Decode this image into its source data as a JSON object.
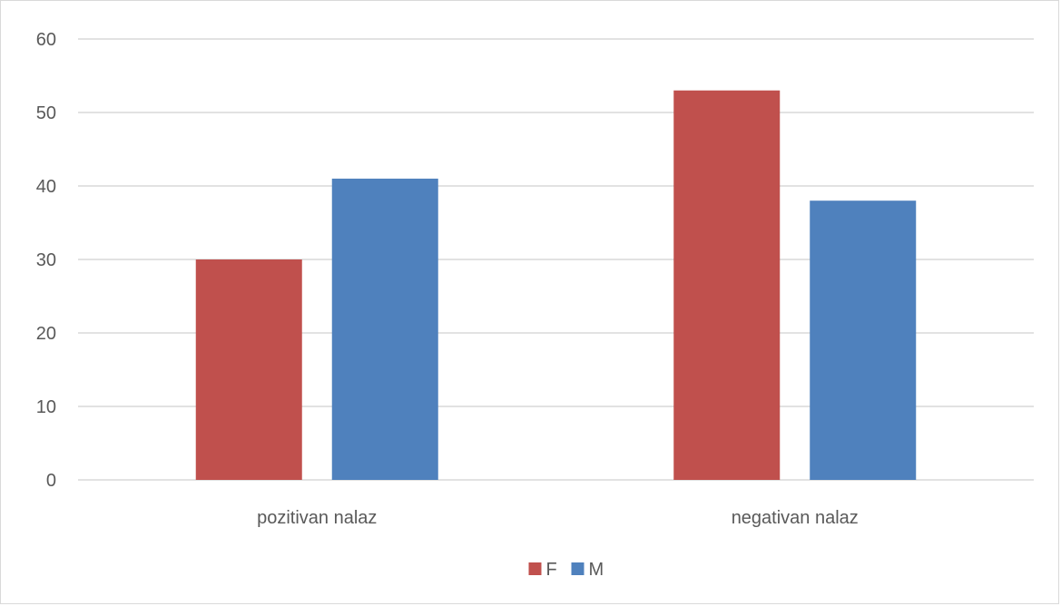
{
  "chart_data": {
    "type": "bar",
    "categories": [
      "pozitivan nalaz",
      "negativan nalaz"
    ],
    "series": [
      {
        "name": "F",
        "values": [
          30,
          53
        ],
        "color": "#C0504D"
      },
      {
        "name": "M",
        "values": [
          41,
          38
        ],
        "color": "#4F81BD"
      }
    ],
    "ylim": [
      0,
      60
    ],
    "yticks": [
      0,
      10,
      20,
      30,
      40,
      50,
      60
    ],
    "grid": true,
    "gridColor": "#d9d9d9",
    "legend": "bottom-center"
  }
}
